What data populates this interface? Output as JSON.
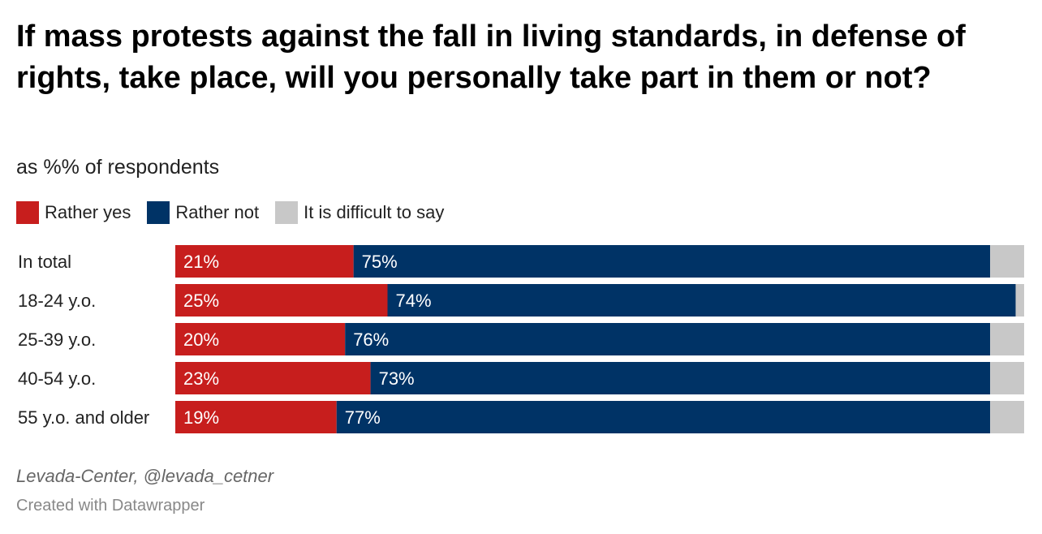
{
  "title": "If mass protests against the fall in living standards, in defense of rights, take place, will you personally take part in them or not?",
  "subtitle": "as %% of respondents",
  "colors": {
    "rather_yes": "#c71e1d",
    "rather_not": "#003366",
    "difficult": "#c8c8c8"
  },
  "legend": [
    {
      "label": "Rather yes",
      "color": "#c71e1d"
    },
    {
      "label": "Rather not",
      "color": "#003366"
    },
    {
      "label": "It is difficult to say",
      "color": "#c8c8c8"
    }
  ],
  "chart_data": {
    "type": "bar",
    "orientation": "horizontal",
    "stacked": true,
    "categories": [
      "In total",
      "18-24 y.o.",
      "25-39 y.o.",
      "40-54 y.o.",
      "55 y.o. and older"
    ],
    "series": [
      {
        "name": "Rather yes",
        "values": [
          21,
          25,
          20,
          23,
          19
        ]
      },
      {
        "name": "Rather not",
        "values": [
          75,
          74,
          76,
          73,
          77
        ]
      },
      {
        "name": "It is difficult to say",
        "values": [
          4,
          1,
          4,
          4,
          4
        ]
      }
    ],
    "value_labels": [
      [
        "21%",
        "75%"
      ],
      [
        "25%",
        "74%"
      ],
      [
        "20%",
        "76%"
      ],
      [
        "23%",
        "73%"
      ],
      [
        "19%",
        "77%"
      ]
    ],
    "xlim": [
      0,
      100
    ],
    "legend_position": "top"
  },
  "source": "Levada-Center, @levada_cetner",
  "credit": "Created with Datawrapper"
}
